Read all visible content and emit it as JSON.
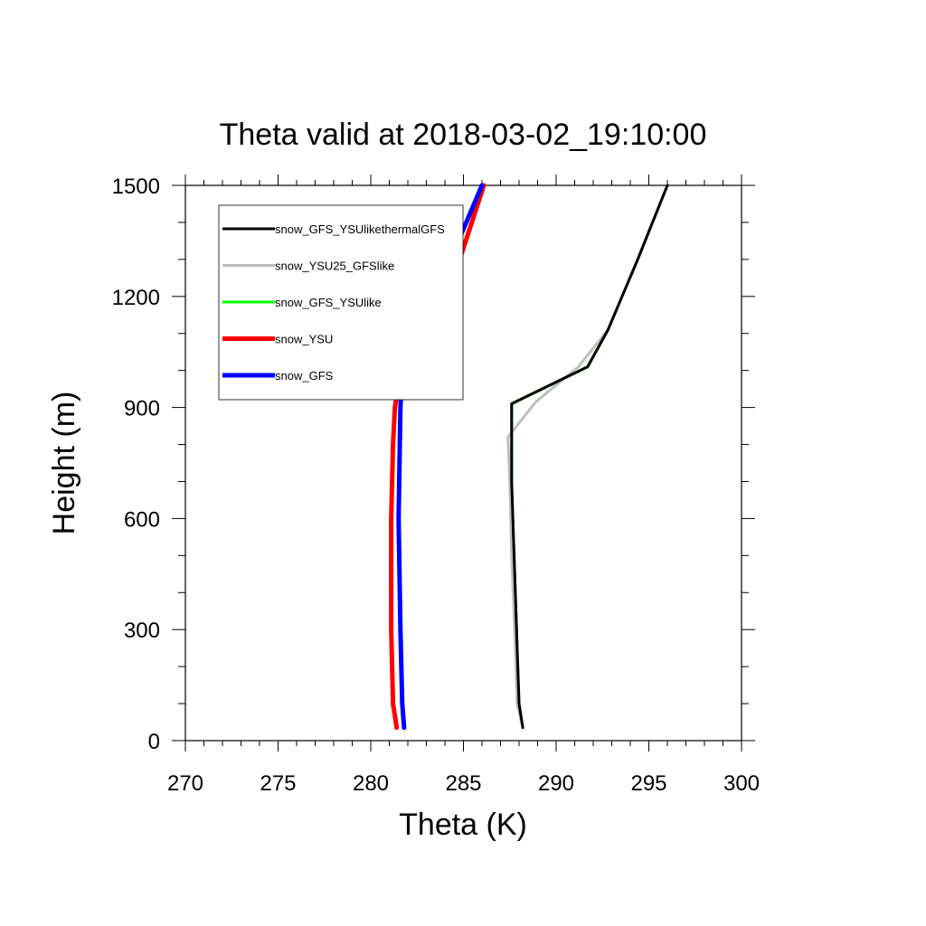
{
  "chart_data": {
    "type": "line",
    "title": "Theta valid at 2018-03-02_19:10:00",
    "xlabel": "Theta (K)",
    "ylabel": "Height (m)",
    "xlim": [
      270,
      300
    ],
    "ylim": [
      0,
      1500
    ],
    "xticks": [
      270,
      275,
      280,
      285,
      290,
      295,
      300
    ],
    "yticks": [
      0,
      300,
      600,
      900,
      1200,
      1500
    ],
    "xtick_labels": [
      "270",
      "275",
      "280",
      "285",
      "290",
      "295",
      "300"
    ],
    "ytick_labels": [
      "0",
      "300",
      "600",
      "900",
      "1200",
      "1500"
    ],
    "grid": false,
    "legend_position": "top-left",
    "series": [
      {
        "name": "snow_GFS_YSUlikethermalGFS",
        "color": "#000000",
        "x": [
          288.2,
          288.0,
          287.9,
          287.8,
          287.7,
          287.6,
          287.6,
          291.7,
          292.8,
          294.4,
          296.0
        ],
        "y": [
          35,
          100,
          250,
          400,
          550,
          700,
          910,
          1010,
          1110,
          1300,
          1500
        ]
      },
      {
        "name": "snow_YSU25_GFSlike",
        "color": "#bebebe",
        "x": [
          288.2,
          287.9,
          287.8,
          287.6,
          287.5,
          287.4,
          288.9,
          291.2,
          292.8,
          294.4,
          296.0
        ],
        "y": [
          35,
          100,
          250,
          500,
          700,
          820,
          915,
          1010,
          1110,
          1300,
          1500
        ]
      },
      {
        "name": "snow_GFS_YSUlike",
        "color": "#00ff00",
        "x": [
          288.2,
          288.0,
          287.9,
          287.8,
          287.7,
          287.6,
          287.6,
          291.7,
          292.8,
          294.4,
          296.0
        ],
        "y": [
          35,
          100,
          250,
          400,
          550,
          700,
          910,
          1010,
          1110,
          1300,
          1500
        ]
      },
      {
        "name": "snow_YSU",
        "color": "#ff0000",
        "x": [
          281.4,
          281.2,
          281.1,
          281.1,
          281.2,
          281.3,
          281.6,
          283.1,
          284.0,
          284.8,
          286.1
        ],
        "y": [
          35,
          100,
          300,
          600,
          800,
          900,
          1000,
          1090,
          1190,
          1300,
          1500
        ]
      },
      {
        "name": "snow_GFS",
        "color": "#0000ff",
        "x": [
          281.8,
          281.7,
          281.6,
          281.5,
          281.6,
          281.7,
          281.8,
          282.0,
          284.3,
          286.0
        ],
        "y": [
          35,
          100,
          300,
          600,
          900,
          1000,
          1090,
          1195,
          1300,
          1500
        ]
      }
    ]
  }
}
